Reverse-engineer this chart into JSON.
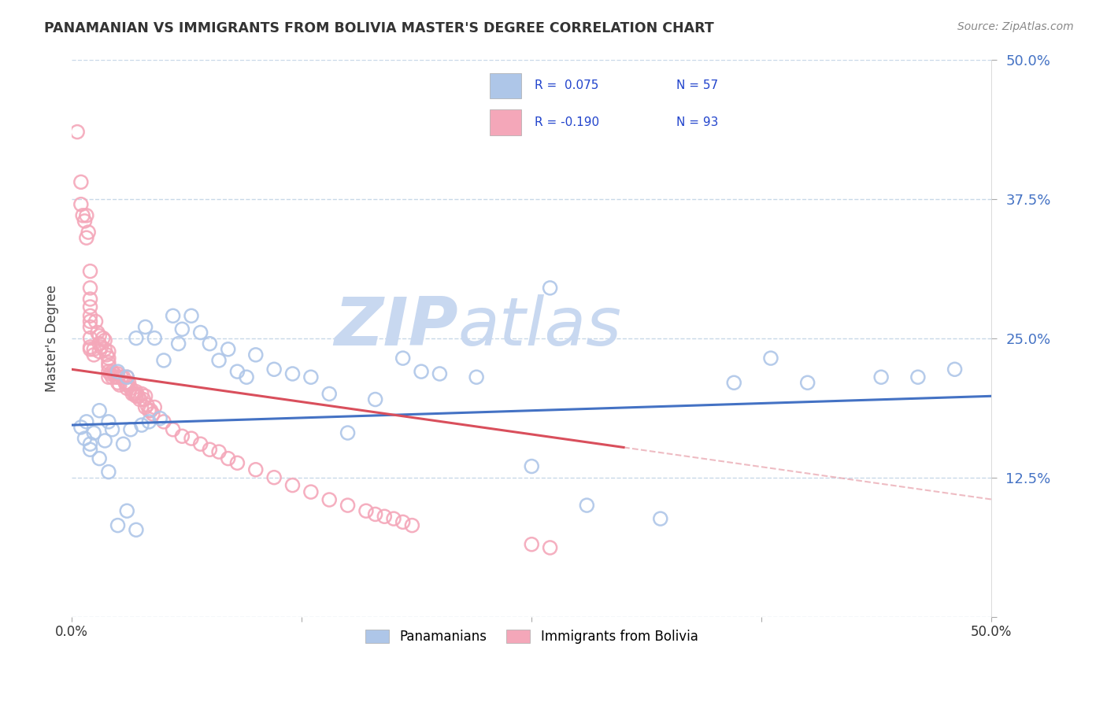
{
  "title": "PANAMANIAN VS IMMIGRANTS FROM BOLIVIA MASTER'S DEGREE CORRELATION CHART",
  "source": "Source: ZipAtlas.com",
  "ylabel": "Master's Degree",
  "xlim": [
    0.0,
    0.5
  ],
  "ylim": [
    0.0,
    0.5
  ],
  "yticks": [
    0.0,
    0.125,
    0.25,
    0.375,
    0.5
  ],
  "ytick_labels": [
    "",
    "12.5%",
    "25.0%",
    "37.5%",
    "50.0%"
  ],
  "xtick_labels": [
    "0.0%",
    "",
    "",
    "",
    "50.0%"
  ],
  "color_blue": "#aec6e8",
  "color_pink": "#f4a7b9",
  "line_blue": "#4472c4",
  "line_pink": "#d94f5c",
  "line_pink_dashed": "#e8a0aa",
  "watermark_zip": "ZIP",
  "watermark_atlas": "atlas",
  "watermark_color_zip": "#c5d8f0",
  "watermark_color_atlas": "#c5d8f0",
  "background_color": "#ffffff",
  "grid_color": "#c8d8e8",
  "legend_r1": "R =  0.075",
  "legend_n1": "N = 57",
  "legend_r2": "R = -0.190",
  "legend_n2": "N = 93",
  "blue_line_start_y": 0.172,
  "blue_line_end_y": 0.198,
  "pink_line_start_y": 0.222,
  "pink_line_end_y": 0.152,
  "pink_line_end_x": 0.3,
  "blue_scatter_x": [
    0.005,
    0.007,
    0.008,
    0.01,
    0.012,
    0.015,
    0.018,
    0.02,
    0.022,
    0.025,
    0.028,
    0.03,
    0.032,
    0.035,
    0.038,
    0.04,
    0.042,
    0.045,
    0.048,
    0.05,
    0.055,
    0.058,
    0.06,
    0.065,
    0.07,
    0.075,
    0.08,
    0.085,
    0.09,
    0.095,
    0.1,
    0.11,
    0.12,
    0.13,
    0.14,
    0.15,
    0.165,
    0.18,
    0.19,
    0.2,
    0.22,
    0.25,
    0.26,
    0.28,
    0.32,
    0.36,
    0.38,
    0.4,
    0.44,
    0.46,
    0.48,
    0.01,
    0.015,
    0.02,
    0.025,
    0.03,
    0.035
  ],
  "blue_scatter_y": [
    0.17,
    0.16,
    0.175,
    0.15,
    0.165,
    0.185,
    0.158,
    0.175,
    0.168,
    0.22,
    0.155,
    0.215,
    0.168,
    0.25,
    0.172,
    0.26,
    0.175,
    0.25,
    0.178,
    0.23,
    0.27,
    0.245,
    0.258,
    0.27,
    0.255,
    0.245,
    0.23,
    0.24,
    0.22,
    0.215,
    0.235,
    0.222,
    0.218,
    0.215,
    0.2,
    0.165,
    0.195,
    0.232,
    0.22,
    0.218,
    0.215,
    0.135,
    0.295,
    0.1,
    0.088,
    0.21,
    0.232,
    0.21,
    0.215,
    0.215,
    0.222,
    0.155,
    0.142,
    0.13,
    0.082,
    0.095,
    0.078
  ],
  "pink_scatter_x": [
    0.003,
    0.005,
    0.005,
    0.006,
    0.007,
    0.008,
    0.008,
    0.009,
    0.01,
    0.01,
    0.01,
    0.01,
    0.01,
    0.01,
    0.01,
    0.01,
    0.01,
    0.01,
    0.012,
    0.012,
    0.013,
    0.014,
    0.015,
    0.015,
    0.015,
    0.016,
    0.017,
    0.018,
    0.018,
    0.019,
    0.02,
    0.02,
    0.02,
    0.02,
    0.02,
    0.02,
    0.021,
    0.022,
    0.022,
    0.023,
    0.024,
    0.025,
    0.025,
    0.025,
    0.026,
    0.027,
    0.028,
    0.029,
    0.03,
    0.03,
    0.03,
    0.03,
    0.031,
    0.032,
    0.033,
    0.034,
    0.035,
    0.035,
    0.035,
    0.036,
    0.037,
    0.038,
    0.039,
    0.04,
    0.04,
    0.041,
    0.042,
    0.043,
    0.044,
    0.045,
    0.05,
    0.055,
    0.06,
    0.065,
    0.07,
    0.075,
    0.08,
    0.085,
    0.09,
    0.1,
    0.11,
    0.12,
    0.13,
    0.14,
    0.15,
    0.16,
    0.165,
    0.17,
    0.175,
    0.18,
    0.185,
    0.25,
    0.26
  ],
  "pink_scatter_y": [
    0.435,
    0.39,
    0.37,
    0.36,
    0.355,
    0.36,
    0.34,
    0.345,
    0.295,
    0.31,
    0.285,
    0.278,
    0.27,
    0.265,
    0.26,
    0.25,
    0.242,
    0.24,
    0.24,
    0.235,
    0.265,
    0.255,
    0.252,
    0.245,
    0.238,
    0.242,
    0.25,
    0.248,
    0.24,
    0.235,
    0.238,
    0.232,
    0.228,
    0.225,
    0.22,
    0.215,
    0.218,
    0.22,
    0.215,
    0.218,
    0.215,
    0.218,
    0.215,
    0.21,
    0.208,
    0.215,
    0.215,
    0.21,
    0.215,
    0.21,
    0.208,
    0.205,
    0.21,
    0.205,
    0.2,
    0.2,
    0.202,
    0.198,
    0.2,
    0.198,
    0.195,
    0.2,
    0.195,
    0.198,
    0.188,
    0.19,
    0.185,
    0.185,
    0.182,
    0.188,
    0.175,
    0.168,
    0.162,
    0.16,
    0.155,
    0.15,
    0.148,
    0.142,
    0.138,
    0.132,
    0.125,
    0.118,
    0.112,
    0.105,
    0.1,
    0.095,
    0.092,
    0.09,
    0.088,
    0.085,
    0.082,
    0.065,
    0.062
  ]
}
